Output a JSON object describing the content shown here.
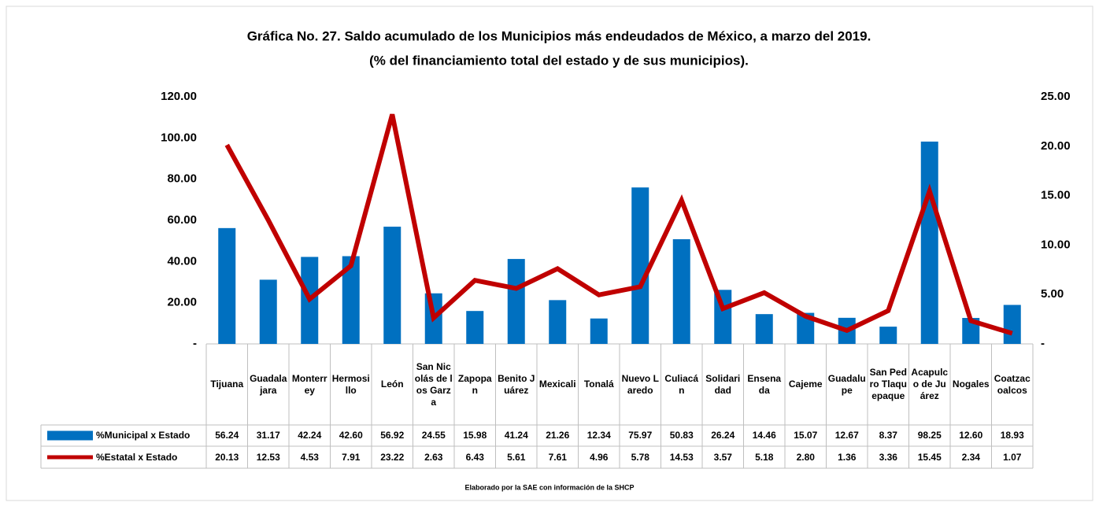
{
  "chart_data": {
    "type": "bar-line-table",
    "title": "Gráfica No. 27. Saldo acumulado de los Municipios más endeudados de México, a marzo del 2019.",
    "subtitle": "(% del financiamiento total del estado y de sus municipios).",
    "source": "Elaborado por la SAE con información de la SHCP",
    "categories": [
      "Tijuana",
      "Guadalajara",
      "Monterrey",
      "Hermosillo",
      "León",
      "San Nicolás de los Garza",
      "Zapopan",
      "Benito Juárez",
      "Mexicali",
      "Tonalá",
      "Nuevo Laredo",
      "Culiacán",
      "Solidaridad",
      "Ensenada",
      "Cajeme",
      "Guadalupe",
      "San Pedro Tlaquepaque",
      "Acapulco de Juárez",
      "Nogales",
      "Coatzacoalcos"
    ],
    "series": [
      {
        "name": "%Municipal x Estado",
        "type": "bar",
        "color": "#0070c0",
        "values": [
          56.24,
          31.17,
          42.24,
          42.6,
          56.92,
          24.55,
          15.98,
          41.24,
          21.26,
          12.34,
          75.97,
          50.83,
          26.24,
          14.46,
          15.07,
          12.67,
          8.37,
          98.25,
          12.6,
          18.93
        ],
        "value_labels": [
          "56.24",
          "31.17",
          "42.24",
          "42.60",
          "56.92",
          "24.55",
          "15.98",
          "41.24",
          "21.26",
          "12.34",
          "75.97",
          "50.83",
          "26.24",
          "14.46",
          "15.07",
          "12.67",
          "8.37",
          "98.25",
          "12.60",
          "18.93"
        ]
      },
      {
        "name": "%Estatal x Estado",
        "type": "line",
        "axis": "y2",
        "color": "#c00000",
        "values": [
          20.13,
          12.53,
          4.53,
          7.91,
          23.22,
          2.63,
          6.43,
          5.61,
          7.61,
          4.96,
          5.78,
          14.53,
          3.57,
          5.18,
          2.8,
          1.36,
          3.36,
          15.45,
          2.34,
          1.07
        ],
        "value_labels": [
          "20.13",
          "12.53",
          "4.53",
          "7.91",
          "23.22",
          "2.63",
          "6.43",
          "5.61",
          "7.61",
          "4.96",
          "5.78",
          "14.53",
          "3.57",
          "5.18",
          "2.80",
          "1.36",
          "3.36",
          "15.45",
          "2.34",
          "1.07"
        ]
      }
    ],
    "ylim": [
      0,
      120
    ],
    "yticks": [
      {
        "value": 0,
        "label": "-"
      },
      {
        "value": 20,
        "label": "20.00"
      },
      {
        "value": 40,
        "label": "40.00"
      },
      {
        "value": 60,
        "label": "60.00"
      },
      {
        "value": 80,
        "label": "80.00"
      },
      {
        "value": 100,
        "label": "100.00"
      },
      {
        "value": 120,
        "label": "120.00"
      }
    ],
    "y2lim": [
      0,
      25
    ],
    "y2ticks": [
      {
        "value": 0,
        "label": "-"
      },
      {
        "value": 5,
        "label": "5.00"
      },
      {
        "value": 10,
        "label": "10.00"
      },
      {
        "value": 15,
        "label": "15.00"
      },
      {
        "value": 20,
        "label": "20.00"
      },
      {
        "value": 25,
        "label": "25.00"
      }
    ],
    "grid": false
  }
}
